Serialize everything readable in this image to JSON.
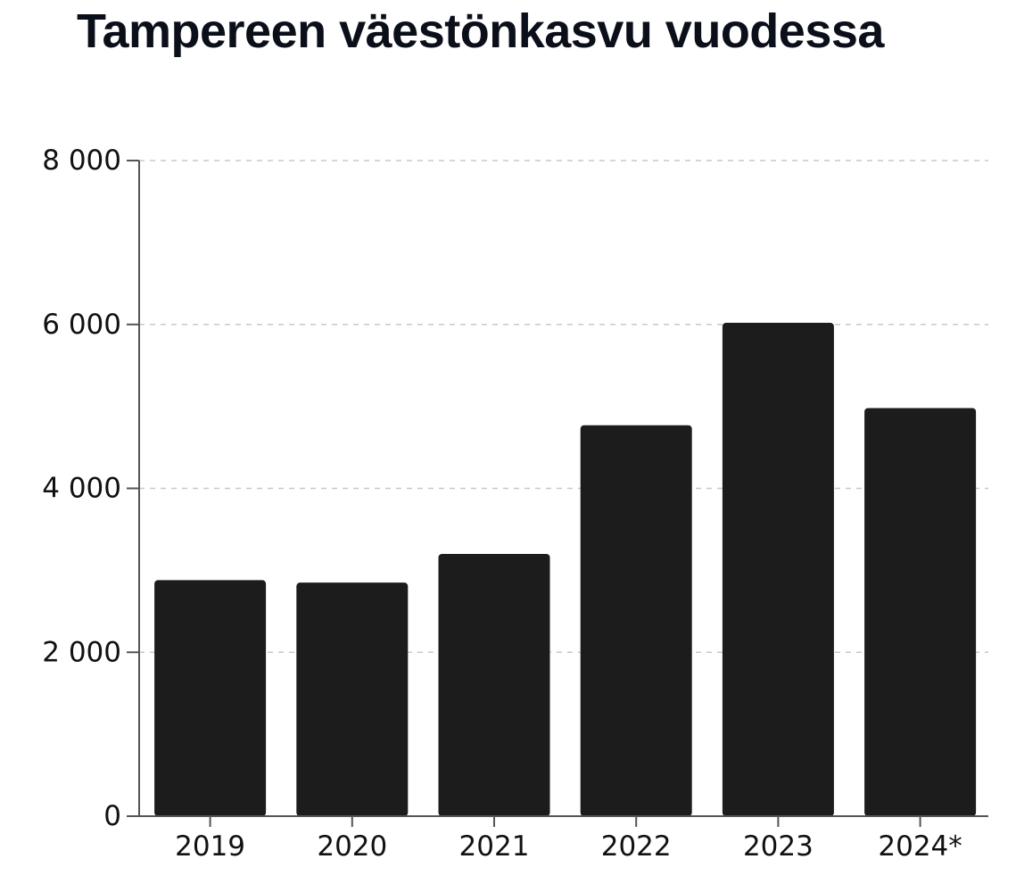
{
  "chart_data": {
    "type": "bar",
    "title": "Tampereen väestönkasvu vuodessa",
    "xlabel": "",
    "ylabel": "",
    "categories": [
      "2019",
      "2020",
      "2021",
      "2022",
      "2023",
      "2024*"
    ],
    "values": [
      2880,
      2850,
      3200,
      4770,
      6020,
      4980
    ],
    "ylim": [
      0,
      8000
    ],
    "y_ticks": [
      0,
      2000,
      4000,
      6000,
      8000
    ],
    "y_tick_labels": [
      "0",
      "2 000",
      "4 000",
      "6 000",
      "8 000"
    ],
    "grid": "horizontal dashed",
    "legend": "none",
    "colors": {
      "bar": "#1c1c1c",
      "grid": "#c8c8c8",
      "axis": "#555555",
      "text": "#111111"
    }
  }
}
